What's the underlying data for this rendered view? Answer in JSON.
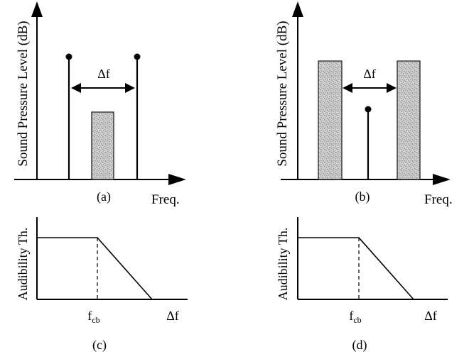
{
  "panel_a": {
    "ylabel": "Sound Pressure Level (dB)",
    "xlabel": "Freq.",
    "caption": "(a)",
    "spacing_label": "Δf"
  },
  "panel_b": {
    "ylabel": "Sound Pressure Level (dB)",
    "xlabel": "Freq.",
    "caption": "(b)",
    "spacing_label": "Δf"
  },
  "panel_c": {
    "ylabel": "Audibility Th.",
    "xlabel": "Δf",
    "tick_label_main": "f",
    "tick_label_sub": "cb",
    "caption": "(c)"
  },
  "panel_d": {
    "ylabel": "Audibility Th.",
    "xlabel": "Δf",
    "tick_label_main": "f",
    "tick_label_sub": "cb",
    "caption": "(d)"
  }
}
